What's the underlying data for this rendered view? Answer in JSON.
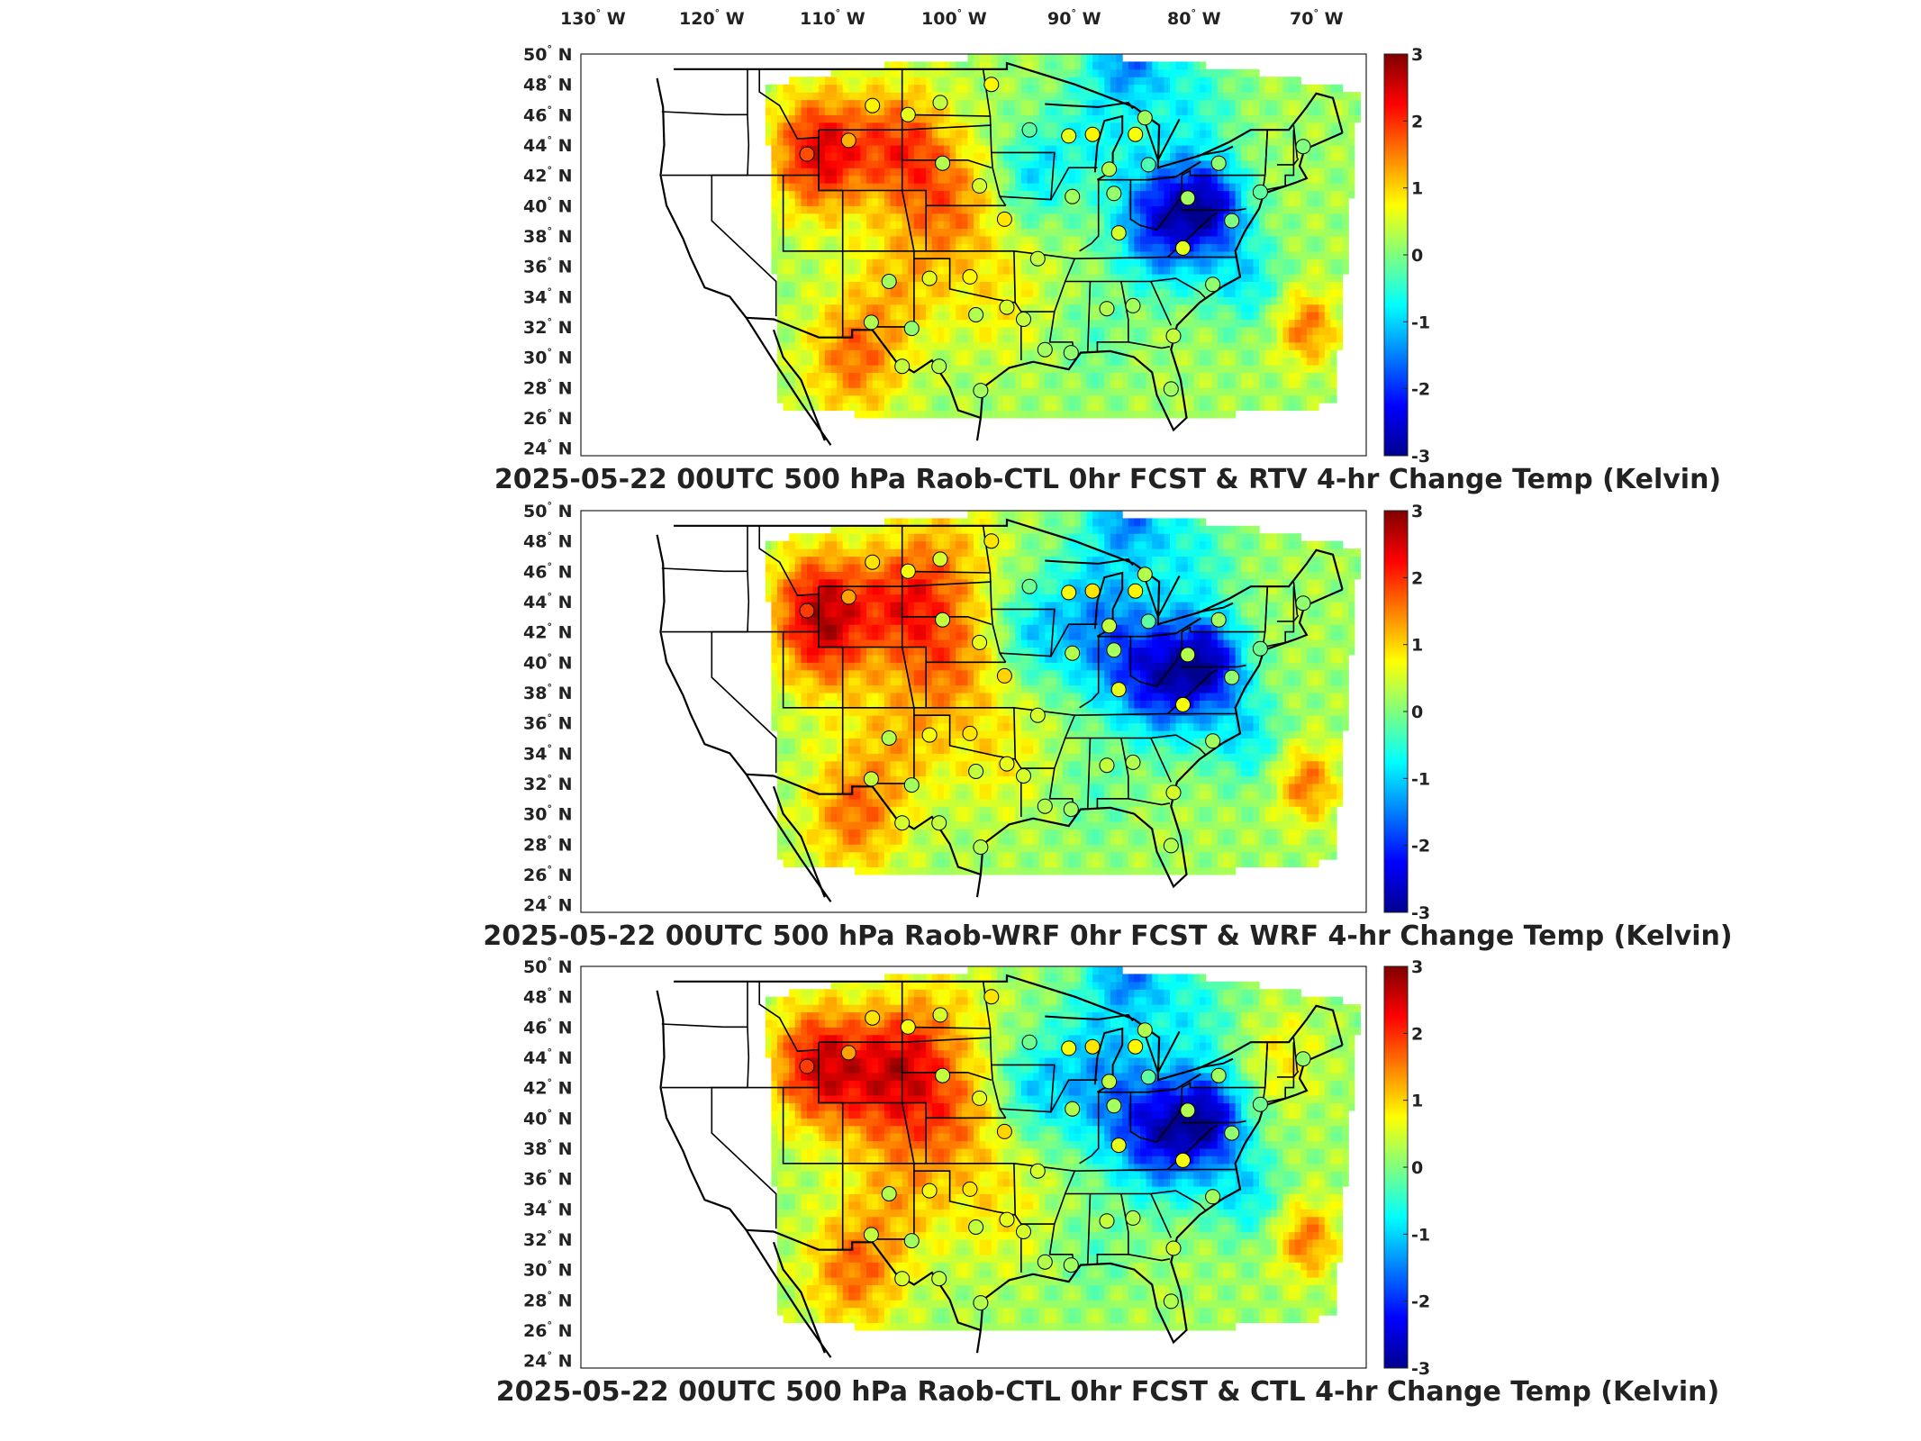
{
  "figure": {
    "top_lon_labels": [
      "130",
      "120",
      "110",
      "100",
      "90",
      "80",
      "70"
    ],
    "lon_suffix": "W",
    "lat_labels": [
      "50",
      "48",
      "46",
      "44",
      "42",
      "40",
      "38",
      "36",
      "34",
      "32",
      "30",
      "28",
      "26",
      "24"
    ],
    "lat_suffix": "N",
    "degree_symbol": "°",
    "colorbar": {
      "ticks": [
        "3",
        "2",
        "1",
        "0",
        "-1",
        "-2",
        "-3"
      ],
      "range": [
        -3,
        3
      ],
      "colormap": "jet",
      "colors": [
        "#00008f",
        "#0000ff",
        "#00ffff",
        "#ffff00",
        "#ff0000",
        "#800000"
      ]
    },
    "panels": [
      {
        "title": "2025-05-22 00UTC 500 hPa Raob-CTL 0hr FCST & RTV 4-hr Change Temp (Kelvin)",
        "field_bias": "rtv"
      },
      {
        "title": "2025-05-22 00UTC 500 hPa Raob-WRF 0hr FCST & WRF 4-hr Change Temp (Kelvin)",
        "field_bias": "wrf"
      },
      {
        "title": "2025-05-22 00UTC 500 hPa Raob-CTL 0hr FCST & CTL 4-hr Change Temp (Kelvin)",
        "field_bias": "ctl"
      }
    ]
  }
}
